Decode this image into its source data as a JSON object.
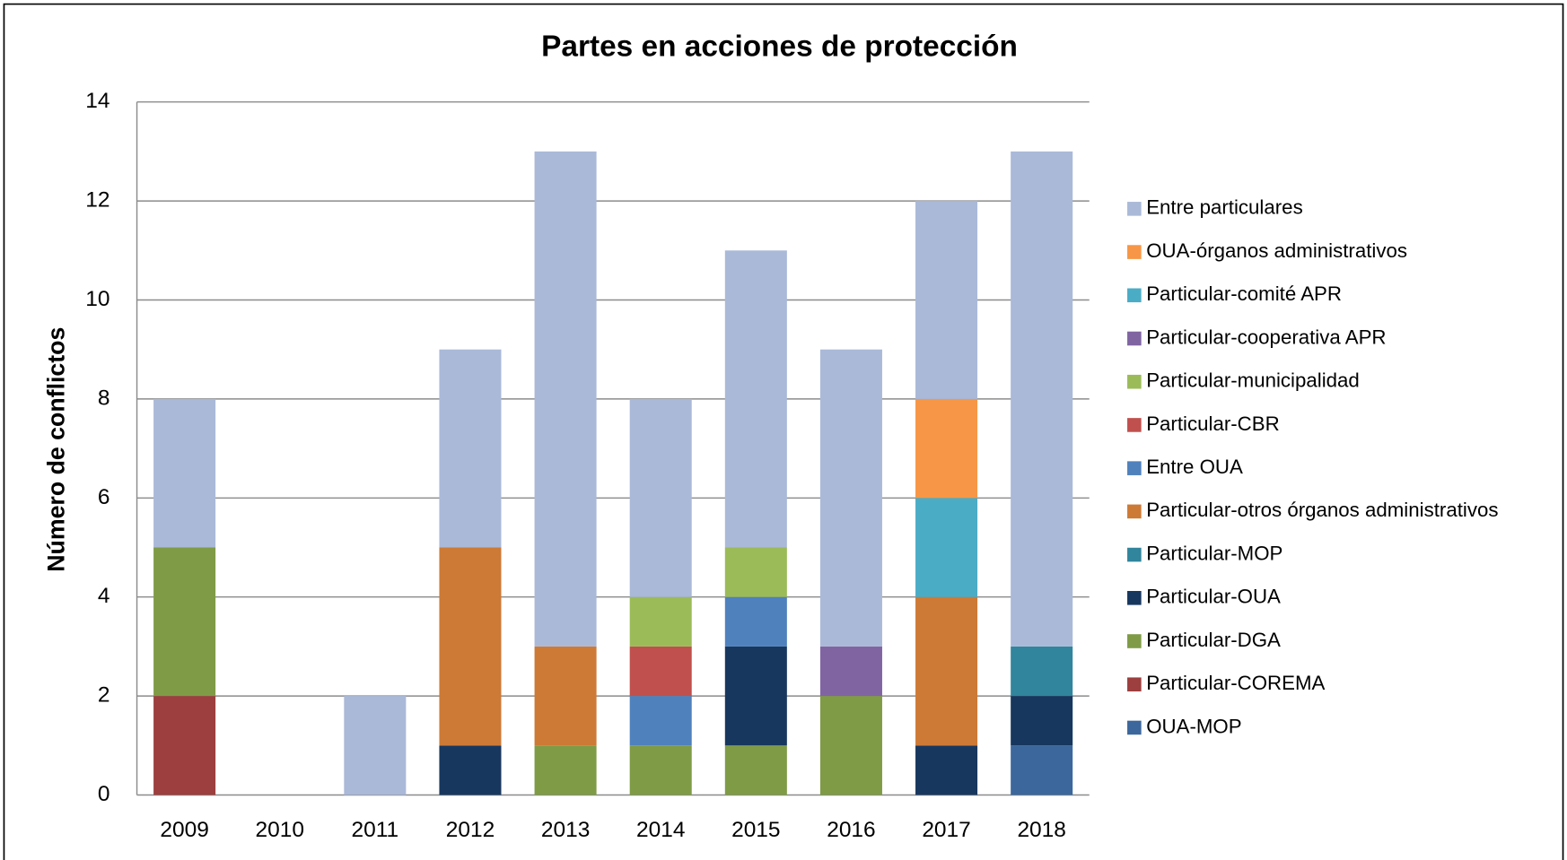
{
  "chart_data": {
    "type": "stacked_bar",
    "title": "Partes en acciones de protección",
    "y_label": "Número de conflictos",
    "categories": [
      "2009",
      "2010",
      "2011",
      "2012",
      "2013",
      "2014",
      "2015",
      "2016",
      "2017",
      "2018"
    ],
    "ylim": [
      0,
      14
    ],
    "yticks": [
      0,
      2,
      4,
      6,
      8,
      10,
      12,
      14
    ],
    "grid": true,
    "legend": "right",
    "series": [
      {
        "name": "OUA-MOP",
        "color": "#3c679c",
        "values": [
          0,
          0,
          0,
          0,
          0,
          0,
          0,
          0,
          0,
          1
        ]
      },
      {
        "name": "Particular-COREMA",
        "color": "#9c3f3e",
        "values": [
          2,
          0,
          0,
          0,
          0,
          0,
          0,
          0,
          0,
          0
        ]
      },
      {
        "name": "Particular-DGA",
        "color": "#7f9b46",
        "values": [
          3,
          0,
          0,
          0,
          1,
          1,
          1,
          2,
          0,
          0
        ]
      },
      {
        "name": "Particular-OUA",
        "color": "#17375e",
        "values": [
          0,
          0,
          0,
          1,
          0,
          0,
          2,
          0,
          1,
          1
        ]
      },
      {
        "name": "Particular-MOP",
        "color": "#31859c",
        "values": [
          0,
          0,
          0,
          0,
          0,
          0,
          0,
          0,
          0,
          1
        ]
      },
      {
        "name": "Particular-otros órganos administrativos",
        "color": "#cd7a36",
        "values": [
          0,
          0,
          0,
          4,
          2,
          0,
          0,
          0,
          3,
          0
        ]
      },
      {
        "name": "Entre OUA",
        "color": "#4f81bd",
        "values": [
          0,
          0,
          0,
          0,
          0,
          1,
          1,
          0,
          0,
          0
        ]
      },
      {
        "name": "Particular-CBR",
        "color": "#c0504d",
        "values": [
          0,
          0,
          0,
          0,
          0,
          1,
          0,
          0,
          0,
          0
        ]
      },
      {
        "name": "Particular-municipalidad",
        "color": "#9bbb59",
        "values": [
          0,
          0,
          0,
          0,
          0,
          1,
          1,
          0,
          0,
          0
        ]
      },
      {
        "name": "Particular-cooperativa APR",
        "color": "#8064a2",
        "values": [
          0,
          0,
          0,
          0,
          0,
          0,
          0,
          1,
          0,
          0
        ]
      },
      {
        "name": "Particular-comité APR",
        "color": "#4bacc6",
        "values": [
          0,
          0,
          0,
          0,
          0,
          0,
          0,
          0,
          2,
          0
        ]
      },
      {
        "name": "OUA-órganos administrativos",
        "color": "#f79646",
        "values": [
          0,
          0,
          0,
          0,
          0,
          0,
          0,
          0,
          2,
          0
        ]
      },
      {
        "name": "Entre particulares",
        "color": "#aab9d8",
        "values": [
          3,
          0,
          2,
          4,
          10,
          4,
          6,
          6,
          4,
          10
        ]
      }
    ]
  }
}
